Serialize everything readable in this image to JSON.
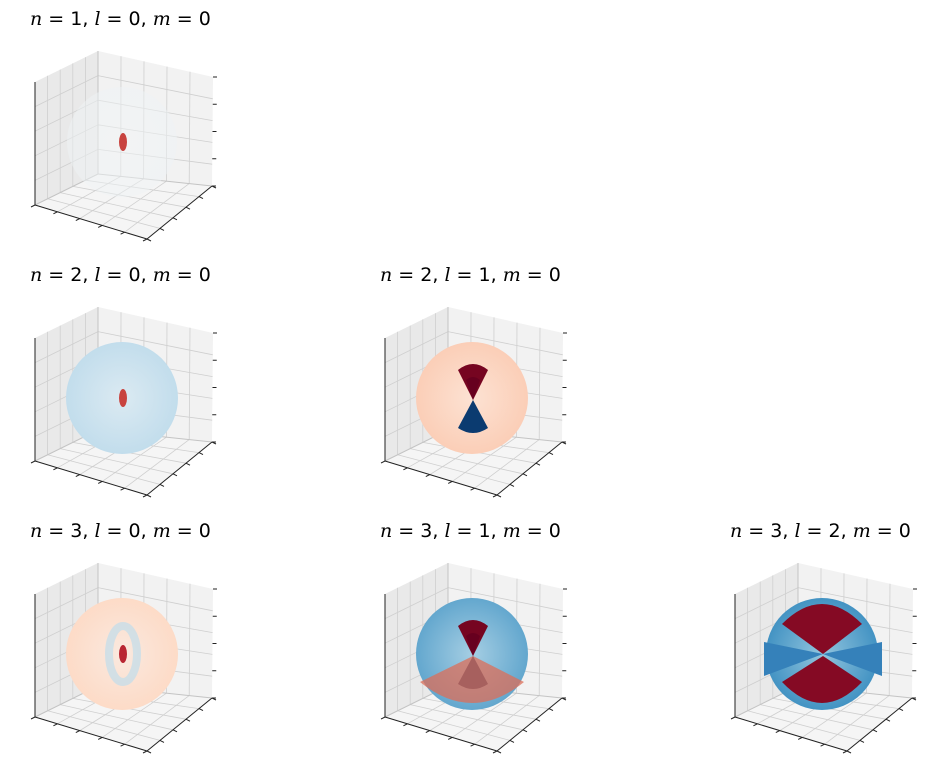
{
  "chart_data": [
    {
      "type": "3d-surface",
      "title_n": "1",
      "title_l": "0",
      "title_m": "0",
      "n": 1,
      "l": 0,
      "m": 0,
      "colormap": "RdBu",
      "grid": true,
      "features": [
        {
          "kind": "dot",
          "value": 0.6
        }
      ],
      "shell_tint": -0.02
    },
    {
      "type": "3d-surface",
      "title_n": "2",
      "title_l": "0",
      "title_m": "0",
      "n": 2,
      "l": 0,
      "m": 0,
      "colormap": "RdBu",
      "grid": true,
      "features": [
        {
          "kind": "dot",
          "value": 0.6
        }
      ],
      "shell_tint": -0.12
    },
    {
      "type": "3d-surface",
      "title_n": "2",
      "title_l": "1",
      "title_m": "0",
      "n": 2,
      "l": 1,
      "m": 0,
      "colormap": "RdBu",
      "grid": true,
      "features": [
        {
          "kind": "lobe-up",
          "value": 0.95
        },
        {
          "kind": "lobe-down",
          "value": -0.95
        }
      ],
      "shell_tint": 0.12
    },
    {
      "type": "3d-surface",
      "title_n": "3",
      "title_l": "0",
      "title_m": "0",
      "n": 3,
      "l": 0,
      "m": 0,
      "colormap": "RdBu",
      "grid": true,
      "features": [
        {
          "kind": "dot",
          "value": 0.7
        },
        {
          "kind": "ring",
          "value": -0.25
        }
      ],
      "shell_tint": 0.08
    },
    {
      "type": "3d-surface",
      "title_n": "3",
      "title_l": "1",
      "title_m": "0",
      "n": 3,
      "l": 1,
      "m": 0,
      "colormap": "RdBu",
      "grid": true,
      "features": [
        {
          "kind": "lobe-up",
          "value": 0.95
        },
        {
          "kind": "lobe-down",
          "value": -0.95
        },
        {
          "kind": "cap-bottom",
          "value": 0.45
        }
      ],
      "shell_tint": -0.4
    },
    {
      "type": "3d-surface",
      "title_n": "3",
      "title_l": "2",
      "title_m": "0",
      "n": 3,
      "l": 2,
      "m": 0,
      "colormap": "RdBu",
      "grid": true,
      "features": [
        {
          "kind": "cap-top",
          "value": 0.9
        },
        {
          "kind": "cap-bottom",
          "value": 0.9
        },
        {
          "kind": "band",
          "value": -0.6
        }
      ],
      "shell_tint": -0.5
    }
  ]
}
